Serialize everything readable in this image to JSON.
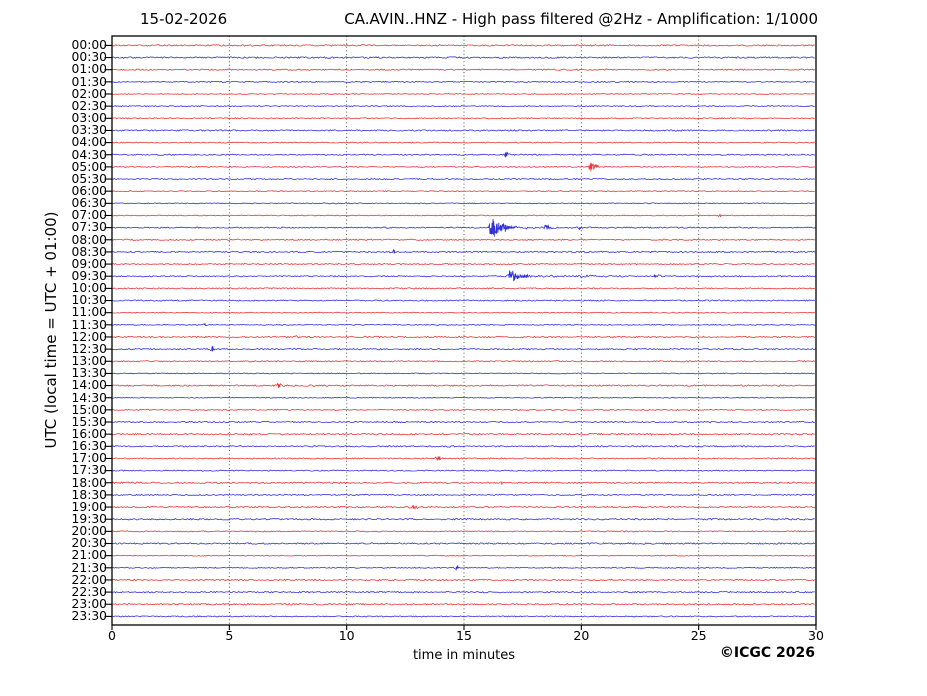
{
  "header": {
    "date": "15-02-2026",
    "title": "CA.AVIN..HNZ - High pass filtered @2Hz - Amplification: 1/1000"
  },
  "footer": {
    "copyright": "©ICGC 2026"
  },
  "chart_data": {
    "type": "line",
    "title": "CA.AVIN..HNZ - High pass filtered @2Hz - Amplification: 1/1000",
    "date": "15-02-2026",
    "xlabel": "time in minutes",
    "ylabel": "UTC (local time = UTC + 01:00)",
    "xlim": [
      0,
      30
    ],
    "x_ticks": [
      0,
      5,
      10,
      15,
      20,
      25,
      30
    ],
    "grid": "vertical-dotted-at-5min",
    "legend_position": "none",
    "palette": {
      "red": "#e62e2e",
      "blue": "#2727d8",
      "axis": "#000000",
      "grid": "#444444"
    },
    "rows": [
      {
        "t": "00:00",
        "c": "red"
      },
      {
        "t": "00:30",
        "c": "blue"
      },
      {
        "t": "01:00",
        "c": "red"
      },
      {
        "t": "01:30",
        "c": "blue"
      },
      {
        "t": "02:00",
        "c": "red"
      },
      {
        "t": "02:30",
        "c": "blue"
      },
      {
        "t": "03:00",
        "c": "red"
      },
      {
        "t": "03:30",
        "c": "blue"
      },
      {
        "t": "04:00",
        "c": "red"
      },
      {
        "t": "04:30",
        "c": "blue"
      },
      {
        "t": "05:00",
        "c": "red"
      },
      {
        "t": "05:30",
        "c": "blue"
      },
      {
        "t": "06:00",
        "c": "red"
      },
      {
        "t": "06:30",
        "c": "blue"
      },
      {
        "t": "07:00",
        "c": "red"
      },
      {
        "t": "07:30",
        "c": "blue"
      },
      {
        "t": "08:00",
        "c": "red"
      },
      {
        "t": "08:30",
        "c": "blue"
      },
      {
        "t": "09:00",
        "c": "red"
      },
      {
        "t": "09:30",
        "c": "blue"
      },
      {
        "t": "10:00",
        "c": "red"
      },
      {
        "t": "10:30",
        "c": "blue"
      },
      {
        "t": "11:00",
        "c": "red"
      },
      {
        "t": "11:30",
        "c": "blue"
      },
      {
        "t": "12:00",
        "c": "red"
      },
      {
        "t": "12:30",
        "c": "blue"
      },
      {
        "t": "13:00",
        "c": "red"
      },
      {
        "t": "13:30",
        "c": "blue"
      },
      {
        "t": "14:00",
        "c": "red"
      },
      {
        "t": "14:30",
        "c": "blue"
      },
      {
        "t": "15:00",
        "c": "red"
      },
      {
        "t": "15:30",
        "c": "blue"
      },
      {
        "t": "16:00",
        "c": "red"
      },
      {
        "t": "16:30",
        "c": "blue"
      },
      {
        "t": "17:00",
        "c": "red"
      },
      {
        "t": "17:30",
        "c": "blue"
      },
      {
        "t": "18:00",
        "c": "red"
      },
      {
        "t": "18:30",
        "c": "blue"
      },
      {
        "t": "19:00",
        "c": "red"
      },
      {
        "t": "19:30",
        "c": "blue"
      },
      {
        "t": "20:00",
        "c": "red"
      },
      {
        "t": "20:30",
        "c": "blue"
      },
      {
        "t": "21:00",
        "c": "red"
      },
      {
        "t": "21:30",
        "c": "blue"
      },
      {
        "t": "22:00",
        "c": "red"
      },
      {
        "t": "22:30",
        "c": "blue"
      },
      {
        "t": "23:00",
        "c": "red"
      },
      {
        "t": "23:30",
        "c": "blue"
      }
    ],
    "events": [
      {
        "row": "04:30",
        "minute": 16.8,
        "amp": 2.2,
        "tail": 0.15
      },
      {
        "row": "05:00",
        "minute": 20.4,
        "amp": 5.0,
        "tail": 0.25
      },
      {
        "row": "07:00",
        "minute": 25.9,
        "amp": 1.8,
        "tail": 0.15
      },
      {
        "row": "07:30",
        "minute": 16.2,
        "amp": 13.0,
        "tail": 0.3
      },
      {
        "row": "07:30",
        "minute": 16.75,
        "amp": 3.0,
        "tail": 0.12
      },
      {
        "row": "07:30",
        "minute": 18.5,
        "amp": 3.0,
        "tail": 0.15
      },
      {
        "row": "07:30",
        "minute": 19.9,
        "amp": 2.2,
        "tail": 0.12
      },
      {
        "row": "07:30",
        "minute": 16.4,
        "amp": 1.0,
        "tail": 5.0
      },
      {
        "row": "08:30",
        "minute": 12.0,
        "amp": 2.4,
        "tail": 0.1
      },
      {
        "row": "09:30",
        "minute": 17.0,
        "amp": 7.5,
        "tail": 0.3
      },
      {
        "row": "09:30",
        "minute": 17.2,
        "amp": 0.9,
        "tail": 8.0
      },
      {
        "row": "09:30",
        "minute": 23.1,
        "amp": 1.3,
        "tail": 0.4
      },
      {
        "row": "11:30",
        "minute": 3.96,
        "amp": 1.8,
        "tail": 0.06
      },
      {
        "row": "12:00",
        "minute": 7.1,
        "amp": 1.3,
        "tail": 0.15
      },
      {
        "row": "12:00",
        "minute": 7.85,
        "amp": 1.3,
        "tail": 0.2
      },
      {
        "row": "12:30",
        "minute": 4.3,
        "amp": 3.0,
        "tail": 0.06
      },
      {
        "row": "14:00",
        "minute": 7.1,
        "amp": 2.3,
        "tail": 0.18
      },
      {
        "row": "16:00",
        "minute": 22.9,
        "amp": 1.5,
        "tail": 0.3
      },
      {
        "row": "16:30",
        "minute": 14.3,
        "amp": 1.3,
        "tail": 0.15
      },
      {
        "row": "17:00",
        "minute": 13.9,
        "amp": 2.3,
        "tail": 0.2
      },
      {
        "row": "18:00",
        "minute": 16.6,
        "amp": 1.8,
        "tail": 0.08
      },
      {
        "row": "19:00",
        "minute": 12.8,
        "amp": 1.8,
        "tail": 0.3
      },
      {
        "row": "21:30",
        "minute": 14.7,
        "amp": 2.3,
        "tail": 0.15
      },
      {
        "row": "22:30",
        "minute": 8.3,
        "amp": 1.4,
        "tail": 0.08
      }
    ]
  }
}
